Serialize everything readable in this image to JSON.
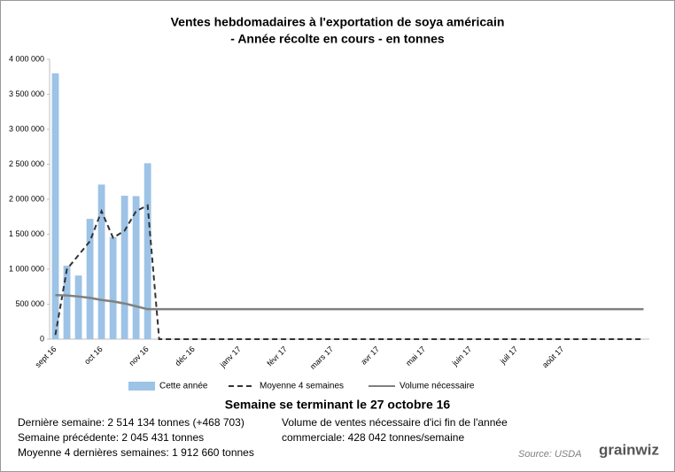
{
  "chart_data": {
    "type": "bar",
    "title": "Ventes hebdomadaires à l'exportation de soya américain",
    "subtitle": "- Année récolte en cours - en tonnes",
    "categories": [
      "sept 16",
      null,
      null,
      null,
      "oct 16",
      null,
      null,
      null,
      "nov 16",
      null,
      null,
      null,
      "déc 16",
      null,
      null,
      null,
      "janv 17",
      null,
      null,
      null,
      "févr 17",
      null,
      null,
      null,
      "mars 17",
      null,
      null,
      null,
      "avr 17",
      null,
      null,
      null,
      "mai 17",
      null,
      null,
      null,
      "juin 17",
      null,
      null,
      null,
      "juil 17",
      null,
      null,
      null,
      "août 17",
      null,
      null,
      null,
      null,
      null,
      null,
      null
    ],
    "series": [
      {
        "name": "Cette année",
        "type": "bar",
        "color": "#9dc3e6",
        "values": [
          3800000,
          1050000,
          910000,
          1720000,
          2210000,
          1460000,
          2050000,
          2045431,
          2514134,
          null,
          null,
          null,
          null,
          null,
          null,
          null,
          null,
          null,
          null,
          null,
          null,
          null,
          null,
          null,
          null,
          null,
          null,
          null,
          null,
          null,
          null,
          null,
          null,
          null,
          null,
          null,
          null,
          null,
          null,
          null,
          null,
          null,
          null,
          null,
          null,
          null,
          null,
          null,
          null,
          null,
          null,
          null
        ]
      },
      {
        "name": "Moyenne 4 semaines",
        "type": "line",
        "dashed": true,
        "color": "#333333",
        "values": [
          60000,
          1000000,
          1200000,
          1400000,
          1830000,
          1450000,
          1550000,
          1830000,
          1912660,
          0,
          0,
          0,
          0,
          0,
          0,
          0,
          0,
          0,
          0,
          0,
          0,
          0,
          0,
          0,
          0,
          0,
          0,
          0,
          0,
          0,
          0,
          0,
          0,
          0,
          0,
          0,
          0,
          0,
          0,
          0,
          0,
          0,
          0,
          0,
          0,
          0,
          0,
          0,
          0,
          0,
          0,
          0
        ]
      },
      {
        "name": "Volume nécessaire",
        "type": "line",
        "dashed": false,
        "color": "#808080",
        "values": [
          630000,
          625000,
          610000,
          590000,
          560000,
          540000,
          510000,
          470000,
          428042,
          428042,
          428042,
          428042,
          428042,
          428042,
          428042,
          428042,
          428042,
          428042,
          428042,
          428042,
          428042,
          428042,
          428042,
          428042,
          428042,
          428042,
          428042,
          428042,
          428042,
          428042,
          428042,
          428042,
          428042,
          428042,
          428042,
          428042,
          428042,
          428042,
          428042,
          428042,
          428042,
          428042,
          428042,
          428042,
          428042,
          428042,
          428042,
          428042,
          428042,
          428042,
          428042,
          428042
        ]
      }
    ],
    "ylim": [
      0,
      4000000
    ],
    "yticks": [
      0,
      {
        "value": 500000,
        "label": "500 000"
      },
      {
        "value": 1000000,
        "label": "1 000 000"
      },
      {
        "value": 1500000,
        "label": "1 500 000"
      },
      {
        "value": 2000000,
        "label": "2 000 000"
      },
      {
        "value": 2500000,
        "label": "2 500 000"
      },
      {
        "value": 3000000,
        "label": "3 000 000"
      },
      {
        "value": 3500000,
        "label": "3 500 000"
      },
      {
        "value": 4000000,
        "label": "4 000 000"
      }
    ],
    "grid": false,
    "legend": "bottom",
    "week_heading": "Semaine se terminant le 27 octobre 16",
    "notes_left": [
      "Dernière semaine: 2 514 134 tonnes (+468 703)",
      "Semaine précédente: 2 045 431 tonnes",
      "Moyenne 4 dernières semaines: 1 912 660 tonnes"
    ],
    "notes_right": [
      "Volume de ventes nécessaire d'ici fin de l'année",
      "commerciale: 428 042 tonnes/semaine"
    ],
    "source": "Source: USDA",
    "logo": "grainwiz"
  }
}
